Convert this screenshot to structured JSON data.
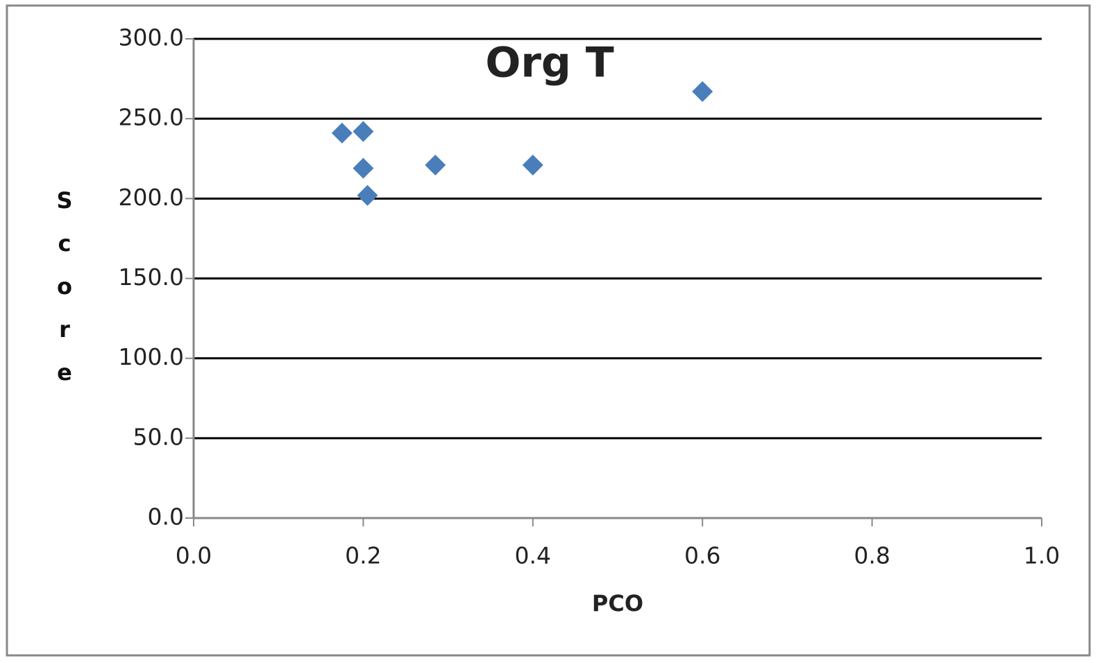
{
  "chart_data": {
    "type": "scatter",
    "title": "Org T",
    "x_label": "PCO",
    "y_label": "Score",
    "series": [
      {
        "name": "Org T",
        "color": "#4a7ebb",
        "x": [
          0.175,
          0.2,
          0.2,
          0.205,
          0.285,
          0.4,
          0.6
        ],
        "values": [
          241,
          242,
          219,
          202,
          221,
          221,
          267
        ]
      }
    ],
    "xlim": [
      0,
      1
    ],
    "xticks": [
      {
        "value": 0,
        "label": "0.0"
      },
      0.2,
      0.4,
      0.6,
      0.8,
      {
        "value": 1,
        "label": "1.0"
      }
    ],
    "ylim": [
      0,
      300
    ],
    "yticks": [
      {
        "value": 0,
        "label": "0.0"
      },
      {
        "value": 50,
        "label": "50.0"
      },
      {
        "value": 100,
        "label": "100.0"
      },
      {
        "value": 150,
        "label": "150.0"
      },
      {
        "value": 200,
        "label": "200.0"
      },
      {
        "value": 250,
        "label": "250.0"
      },
      {
        "value": 300,
        "label": "300.0"
      }
    ],
    "grid": true
  }
}
